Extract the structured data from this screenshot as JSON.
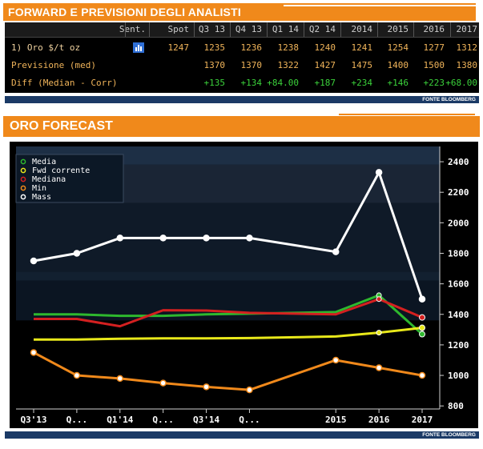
{
  "top_banner": {
    "title": "FORWARD E PREVISIONI DEGLI ANALISTI"
  },
  "table": {
    "headers": [
      "",
      "Sent.",
      "Spot",
      "Q3 13",
      "Q4 13",
      "Q1 14",
      "Q2 14",
      "2014",
      "2015",
      "2016",
      "2017"
    ],
    "rows": [
      {
        "label": "1) Oro $/t oz",
        "sent_icon": "chart-icon",
        "values": [
          "1247",
          "1235",
          "1236",
          "1238",
          "1240",
          "1241",
          "1254",
          "1277",
          "1312"
        ]
      },
      {
        "label": "Previsione (med)",
        "values": [
          "",
          "1370",
          "1370",
          "1322",
          "1427",
          "1475",
          "1400",
          "1500",
          "1380"
        ]
      },
      {
        "label": "Diff (Median - Corr)",
        "values": [
          "",
          "+135",
          "+134",
          "+84.00",
          "+187",
          "+234",
          "+146",
          "+223",
          "+68.00"
        ]
      }
    ]
  },
  "source_label": "FONTE BLOOMBERG",
  "chart_banner": {
    "title": "ORO FORECAST"
  },
  "colors": {
    "accent": "#f0891b",
    "table_bg": "#000000",
    "table_text": "#f0b45a",
    "positive": "#3bd23b",
    "source_bar": "#1b3a66"
  },
  "chart_data": {
    "type": "line",
    "categories": [
      "Q3'13",
      "Q...",
      "Q1'14",
      "Q...",
      "Q3'14",
      "Q...",
      "2015",
      "2016",
      "2017"
    ],
    "x_positions": [
      0,
      1,
      2,
      3,
      4,
      5,
      7,
      8,
      9
    ],
    "ylim": [
      780,
      2500
    ],
    "yticks": [
      800,
      1000,
      1200,
      1400,
      1600,
      1800,
      2000,
      2200,
      2400
    ],
    "legend_position": "top-left",
    "grid": false,
    "series": [
      {
        "name": "Media",
        "color": "#2eb82e",
        "values": [
          1400,
          1400,
          1390,
          1390,
          1400,
          1405,
          1415,
          1525,
          1270
        ]
      },
      {
        "name": "Fwd corrente",
        "color": "#e8e81a",
        "values": [
          1235,
          1235,
          1240,
          1243,
          1243,
          1245,
          1255,
          1280,
          1312
        ]
      },
      {
        "name": "Mediana",
        "color": "#d42020",
        "values": [
          1370,
          1370,
          1322,
          1427,
          1425,
          1410,
          1400,
          1500,
          1380
        ]
      },
      {
        "name": "Min",
        "color": "#f0891b",
        "values": [
          1150,
          1000,
          980,
          950,
          925,
          905,
          1100,
          1050,
          1000
        ]
      },
      {
        "name": "Mass",
        "color": "#ffffff",
        "values": [
          1750,
          1800,
          1900,
          1900,
          1900,
          1900,
          1810,
          2330,
          1500
        ]
      }
    ]
  }
}
